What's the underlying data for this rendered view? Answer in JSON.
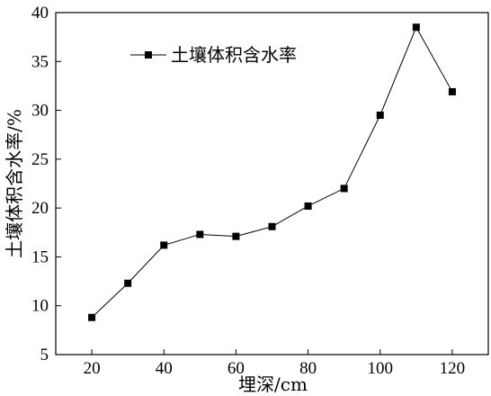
{
  "chart_data": {
    "type": "line",
    "title": "",
    "xlabel": "埋深/cm",
    "ylabel": "土壤体积含水率/%",
    "xlim": [
      10,
      130
    ],
    "ylim": [
      5,
      40
    ],
    "xticks": [
      20,
      40,
      60,
      80,
      100,
      120
    ],
    "yticks": [
      5,
      10,
      15,
      20,
      25,
      30,
      35,
      40
    ],
    "x": [
      20,
      30,
      40,
      50,
      60,
      70,
      80,
      90,
      100,
      110,
      120
    ],
    "series": [
      {
        "name": "土壤体积含水率",
        "marker": "filled-square",
        "color": "#000000",
        "values": [
          8.8,
          12.3,
          16.2,
          17.3,
          17.1,
          18.1,
          20.2,
          22.0,
          29.5,
          38.5,
          31.9
        ]
      }
    ],
    "grid": false,
    "legend_position": "top-left"
  }
}
